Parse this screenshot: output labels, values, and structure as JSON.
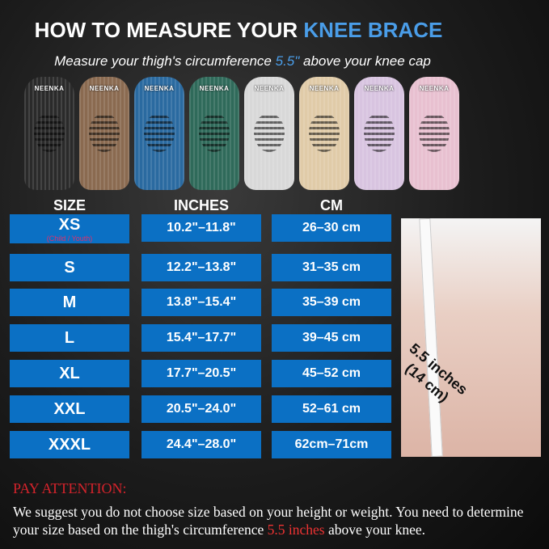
{
  "title": {
    "main": "HOW TO MEASURE YOUR ",
    "accent": "KNEE BRACE"
  },
  "subtitle": {
    "pre": "Measure your thigh's circumference ",
    "accent": "5.5\"",
    "post": " above your knee cap"
  },
  "brand": "NEENKA",
  "brace_colors": [
    "#2a2a2a",
    "#8a6a50",
    "#2a6aa0",
    "#2f6a5a",
    "#d8d8d8",
    "#e0cba8",
    "#d8c4e0",
    "#e8c0d0"
  ],
  "headers": {
    "size": "SIZE",
    "inches": "INCHES",
    "cm": "CM"
  },
  "rows": [
    {
      "size": "XS",
      "note": "(Child / Youth)",
      "inches": "10.2\"–11.8\"",
      "cm": "26–30 cm"
    },
    {
      "size": "S",
      "inches": "12.2\"–13.8\"",
      "cm": "31–35 cm"
    },
    {
      "size": "M",
      "inches": "13.8\"–15.4\"",
      "cm": "35–39 cm"
    },
    {
      "size": "L",
      "inches": "15.4\"–17.7\"",
      "cm": "39–45 cm"
    },
    {
      "size": "XL",
      "inches": "17.7\"–20.5\"",
      "cm": "45–52 cm"
    },
    {
      "size": "XXL",
      "inches": "20.5\"–24.0\"",
      "cm": "52–61 cm"
    },
    {
      "size": "XXXL",
      "inches": "24.4\"–28.0\"",
      "cm": "62cm–71cm"
    }
  ],
  "photo_label": {
    "line1": "5.5 inches",
    "line2": "(14 cm)"
  },
  "attention": {
    "heading": "PAY ATTENTION:",
    "text_pre": "We suggest you do not choose size based on your height or weight. You need to determine your size based on the thigh's circumference ",
    "accent": "5.5 inches",
    "text_post": " above your knee."
  },
  "colors": {
    "accent_blue": "#4a9de8",
    "cell_blue": "#0b70c4",
    "warning_red": "#d4232b"
  }
}
